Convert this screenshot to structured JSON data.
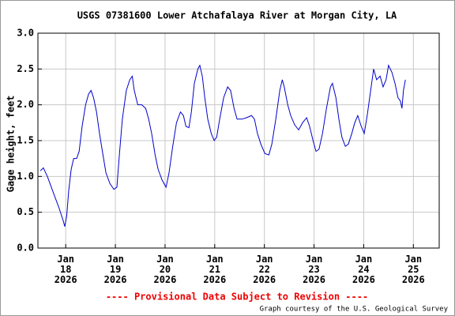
{
  "chart_data": {
    "type": "line",
    "title": "USGS 07381600 Lower Atchafalaya River at Morgan City, LA",
    "y_label": "Gage height, feet",
    "annotations": [
      "---- Provisional Data Subject to Revision ----",
      "Graph courtesy of the U.S. Geological Survey"
    ],
    "grid": true,
    "xlim": [
      17.44,
      25.52
    ],
    "xticks": [
      {
        "value": 18,
        "label": "Jan 18 2026"
      },
      {
        "value": 19,
        "label": "Jan 19 2026"
      },
      {
        "value": 20,
        "label": "Jan 20 2026"
      },
      {
        "value": 21,
        "label": "Jan 21 2026"
      },
      {
        "value": 22,
        "label": "Jan 22 2026"
      },
      {
        "value": 23,
        "label": "Jan 23 2026"
      },
      {
        "value": 24,
        "label": "Jan 24 2026"
      },
      {
        "value": 25,
        "label": "Jan 25 2026"
      }
    ],
    "ylim": [
      0,
      3
    ],
    "yticks": [
      {
        "value": 0,
        "label": "0.0"
      },
      0.5,
      {
        "value": 1,
        "label": "1.0"
      },
      1.5,
      {
        "value": 2,
        "label": "2.0"
      },
      2.5,
      {
        "value": 3,
        "label": "3.0"
      }
    ],
    "x": [
      17.49,
      17.55,
      17.63,
      17.71,
      17.79,
      17.87,
      17.95,
      17.98,
      18.02,
      18.06,
      18.11,
      18.16,
      18.22,
      18.27,
      18.33,
      18.4,
      18.46,
      18.51,
      18.56,
      18.62,
      18.68,
      18.75,
      18.81,
      18.89,
      18.97,
      19.03,
      19.08,
      19.14,
      19.22,
      19.29,
      19.34,
      19.38,
      19.45,
      19.53,
      19.61,
      19.67,
      19.73,
      19.8,
      19.86,
      19.94,
      20.02,
      20.08,
      20.15,
      20.23,
      20.31,
      20.37,
      20.42,
      20.48,
      20.53,
      20.59,
      20.66,
      20.7,
      20.75,
      20.8,
      20.86,
      20.93,
      20.99,
      21.04,
      21.1,
      21.18,
      21.26,
      21.32,
      21.39,
      21.45,
      21.55,
      21.64,
      21.74,
      21.8,
      21.86,
      21.93,
      22.01,
      22.09,
      22.15,
      22.23,
      22.31,
      22.36,
      22.4,
      22.47,
      22.53,
      22.61,
      22.69,
      22.77,
      22.85,
      22.91,
      22.98,
      23.04,
      23.1,
      23.17,
      23.25,
      23.33,
      23.37,
      23.44,
      23.5,
      23.56,
      23.63,
      23.69,
      23.76,
      23.82,
      23.88,
      23.95,
      24.01,
      24.07,
      24.14,
      24.2,
      24.26,
      24.33,
      24.39,
      24.45,
      24.5,
      24.57,
      24.63,
      24.69,
      24.74,
      24.77,
      24.8,
      24.84
    ],
    "series": [
      {
        "name": "Gage height",
        "color": "#0000cc",
        "values": [
          1.08,
          1.12,
          1.0,
          0.85,
          0.7,
          0.55,
          0.38,
          0.3,
          0.45,
          0.8,
          1.1,
          1.25,
          1.25,
          1.35,
          1.7,
          2.0,
          2.15,
          2.2,
          2.1,
          1.9,
          1.6,
          1.3,
          1.05,
          0.9,
          0.82,
          0.85,
          1.3,
          1.8,
          2.2,
          2.35,
          2.4,
          2.2,
          2.0,
          2.0,
          1.95,
          1.8,
          1.6,
          1.3,
          1.1,
          0.95,
          0.85,
          1.05,
          1.4,
          1.75,
          1.9,
          1.85,
          1.7,
          1.68,
          1.9,
          2.3,
          2.5,
          2.55,
          2.4,
          2.1,
          1.8,
          1.6,
          1.5,
          1.55,
          1.8,
          2.1,
          2.25,
          2.2,
          1.95,
          1.8,
          1.8,
          1.82,
          1.85,
          1.8,
          1.6,
          1.45,
          1.32,
          1.3,
          1.45,
          1.8,
          2.2,
          2.35,
          2.25,
          2.0,
          1.85,
          1.72,
          1.65,
          1.75,
          1.82,
          1.7,
          1.5,
          1.35,
          1.38,
          1.6,
          1.95,
          2.25,
          2.3,
          2.1,
          1.8,
          1.55,
          1.42,
          1.45,
          1.6,
          1.75,
          1.85,
          1.7,
          1.6,
          1.85,
          2.2,
          2.5,
          2.35,
          2.4,
          2.25,
          2.35,
          2.55,
          2.45,
          2.3,
          2.1,
          2.05,
          1.95,
          2.2,
          2.35
        ]
      }
    ]
  }
}
